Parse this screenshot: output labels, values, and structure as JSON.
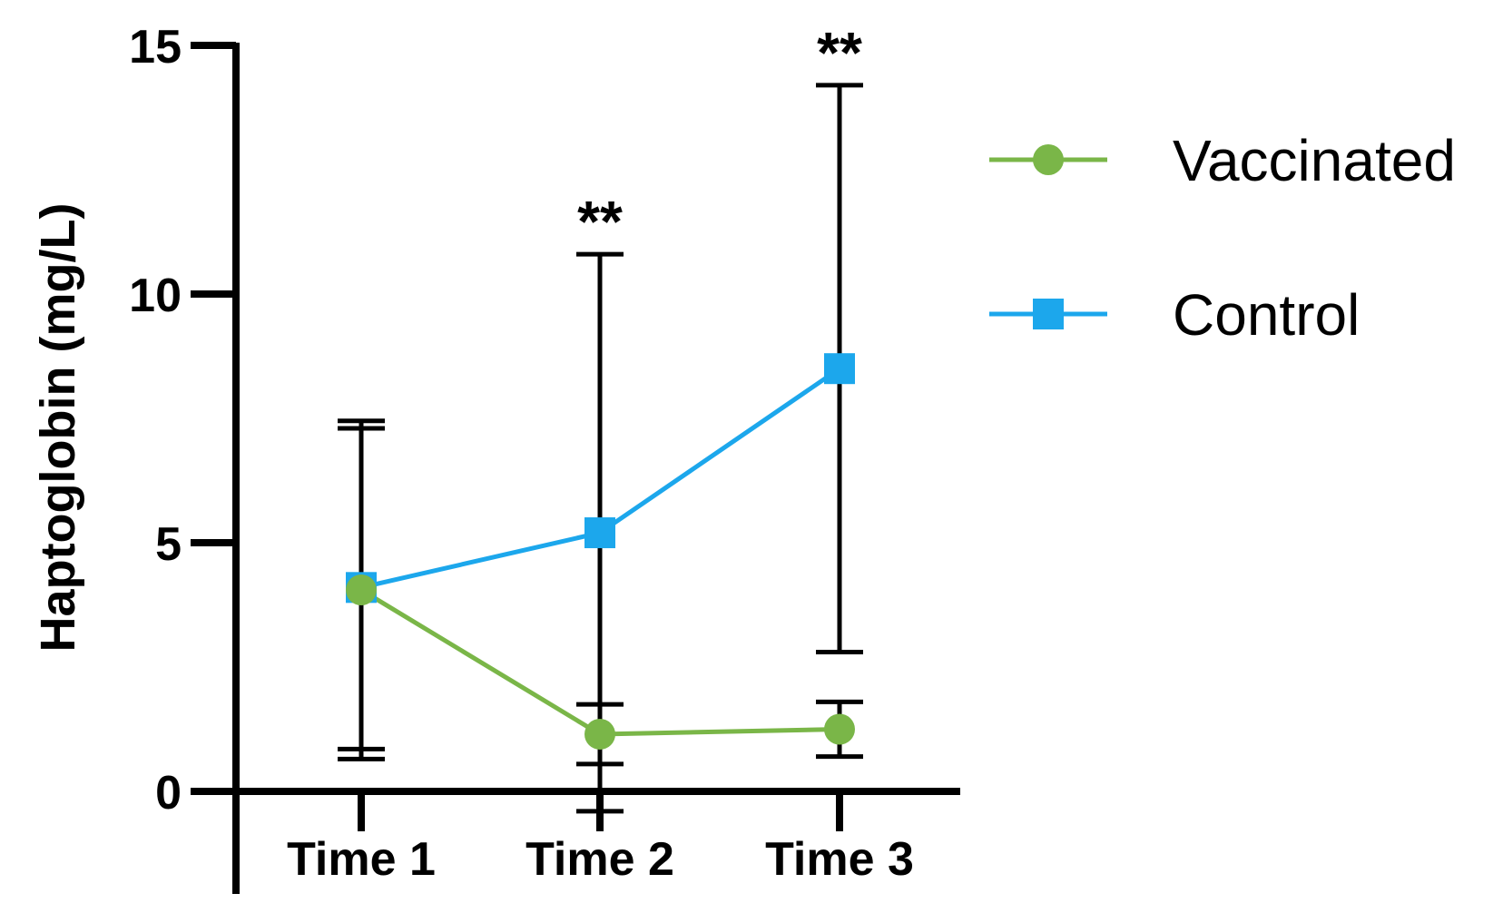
{
  "chart_data": {
    "type": "line",
    "title": "",
    "xlabel": "",
    "ylabel": "Haptoglobin (mg/L)",
    "categories": [
      "Time 1",
      "Time 2",
      "Time 3"
    ],
    "ylim": [
      0,
      15
    ],
    "yticks": [
      0,
      5,
      10,
      15
    ],
    "ytick_labels": [
      "0",
      "5",
      "10",
      "15"
    ],
    "grid": false,
    "legend_position": "right",
    "series": [
      {
        "name": "Vaccinated",
        "color": "#7ab648",
        "marker": "circle",
        "values": [
          4.05,
          1.15,
          1.25
        ],
        "error_lower": [
          0.65,
          0.55,
          0.7
        ],
        "error_upper": [
          7.3,
          1.75,
          1.8
        ]
      },
      {
        "name": "Control",
        "color": "#1ca7ec",
        "marker": "square",
        "values": [
          4.1,
          5.2,
          8.5
        ],
        "error_lower": [
          0.85,
          -0.4,
          2.8
        ],
        "error_upper": [
          7.45,
          10.8,
          14.2
        ]
      }
    ],
    "annotations": [
      {
        "category": "Time 2",
        "text": "**",
        "y": 10.8
      },
      {
        "category": "Time 3",
        "text": "**",
        "y": 14.2
      }
    ]
  }
}
